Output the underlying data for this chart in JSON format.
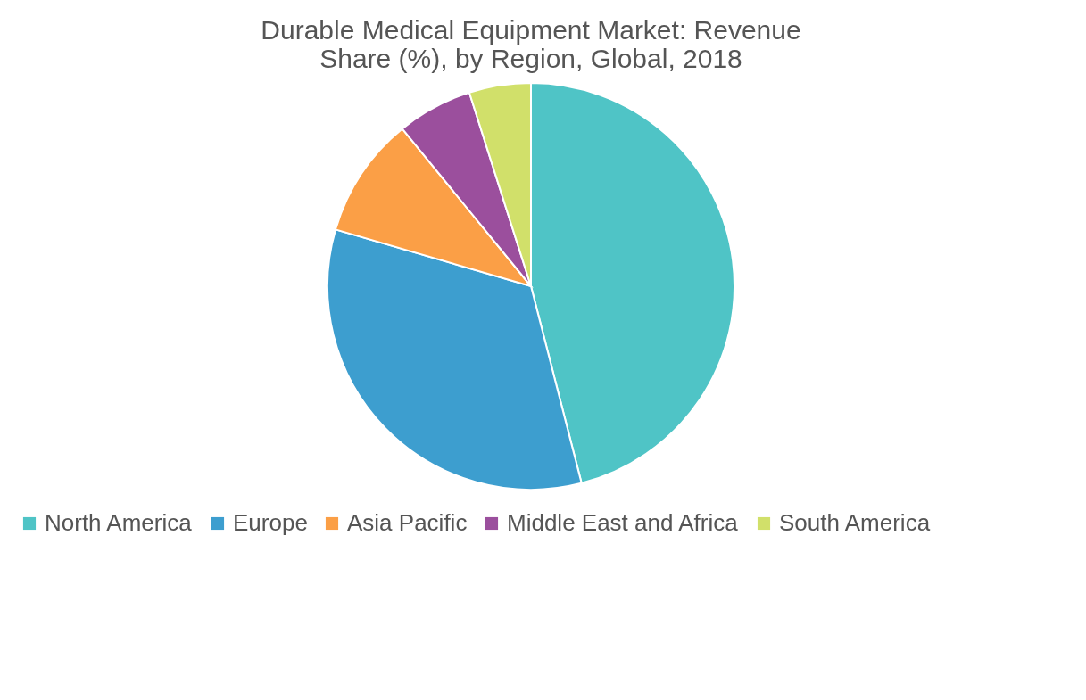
{
  "chart_data": {
    "type": "pie",
    "title": [
      "Durable Medical Equipment Market: Revenue",
      "Share (%), by Region, Global, 2018"
    ],
    "categories": [
      "North America",
      "Europe",
      "Asia Pacific",
      "Middle East and Africa",
      "South America"
    ],
    "values": [
      46,
      33.5,
      9.6,
      6,
      4.9
    ],
    "colors": [
      "#4fc4c6",
      "#3d9ecf",
      "#fb9f46",
      "#9b4f9d",
      "#d1e06a"
    ],
    "legend": "bottom"
  }
}
